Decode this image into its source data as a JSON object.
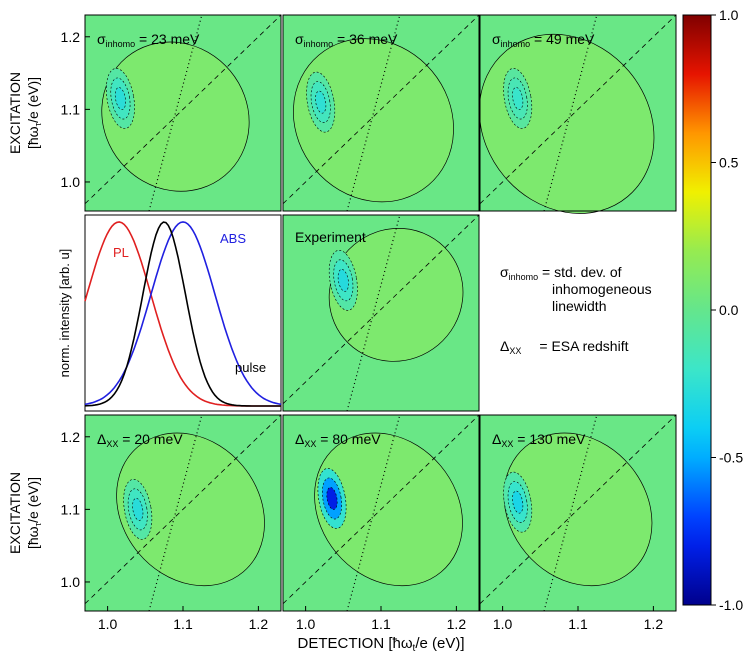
{
  "chart_data": {
    "type": "heatmap",
    "xlabel": "DETECTION [ħω",
    "xlabel_sub": "t",
    "xlabel_tail": "/e (eV)]",
    "ylabel_line1": "EXCITATION",
    "ylabel_line2": "[ħω",
    "ylabel_sub": "τ",
    "ylabel_tail": "/e (eV)]",
    "xlim": [
      0.97,
      1.23
    ],
    "ylim": [
      0.96,
      1.23
    ],
    "x_ticks": [
      1.0,
      1.1,
      1.2
    ],
    "y_ticks": [
      1.0,
      1.1,
      1.2
    ],
    "x_tick_labels": [
      "1.0",
      "1.1",
      "1.2"
    ],
    "y_tick_labels": [
      "1.0",
      "1.1",
      "1.2"
    ],
    "colorbar": {
      "range": [
        -1.0,
        1.0
      ],
      "ticks": [
        1.0,
        0.5,
        0.0,
        -0.5,
        -1.0
      ],
      "tick_labels": [
        "1.0",
        "0.5",
        "0.0",
        "-0.5",
        "-1.0"
      ]
    },
    "panels": [
      {
        "id": "sigma23",
        "sym": "σ",
        "sub": "inhomo",
        "label": " = 23 meV",
        "pos": {
          "cx": 1.09,
          "cy": 1.09,
          "sx": 0.042,
          "sy": 0.047,
          "neg": -0.32,
          "ncx": 1.017,
          "ncy": 1.115
        }
      },
      {
        "id": "sigma36",
        "sym": "σ",
        "sub": "inhomo",
        "label": " = 36 meV",
        "pos": {
          "cx": 1.09,
          "cy": 1.085,
          "sx": 0.045,
          "sy": 0.052,
          "neg": -0.3,
          "ncx": 1.02,
          "ncy": 1.11
        }
      },
      {
        "id": "sigma49",
        "sym": "σ",
        "sub": "inhomo",
        "label": " = 49 meV",
        "pos": {
          "cx": 1.085,
          "cy": 1.08,
          "sx": 0.048,
          "sy": 0.058,
          "neg": -0.25,
          "ncx": 1.02,
          "ncy": 1.115
        }
      },
      {
        "id": "dxx20",
        "sym": "Δ",
        "sub": "XX",
        "label": " = 20 meV",
        "pos": {
          "cx": 1.11,
          "cy": 1.1,
          "sx": 0.04,
          "sy": 0.05,
          "neg": -0.33,
          "ncx": 1.04,
          "ncy": 1.1
        }
      },
      {
        "id": "dxx80",
        "sym": "Δ",
        "sub": "XX",
        "label": " = 80 meV",
        "pos": {
          "cx": 1.11,
          "cy": 1.1,
          "sx": 0.04,
          "sy": 0.05,
          "neg": -0.95,
          "ncx": 1.035,
          "ncy": 1.115
        }
      },
      {
        "id": "dxx130",
        "sym": "Δ",
        "sub": "XX",
        "label": " = 130 meV",
        "pos": {
          "cx": 1.1,
          "cy": 1.1,
          "sx": 0.04,
          "sy": 0.05,
          "neg": -0.4,
          "ncx": 1.02,
          "ncy": 1.11
        }
      }
    ],
    "experiment": {
      "title": "Experiment",
      "pos": {
        "cx": 1.12,
        "cy": 1.12,
        "sx": 0.04,
        "sy": 0.04,
        "neg": -0.35,
        "ncx": 1.05,
        "ncy": 1.14
      }
    },
    "spectra": {
      "ylabel": "norm. intensity [arb. u]",
      "series": [
        {
          "name": "PL",
          "color": "#e02020",
          "peak": 1.015
        },
        {
          "name": "ABS",
          "color": "#2020e0",
          "peak": 1.1
        },
        {
          "name": "pulse",
          "color": "#000000",
          "peak": 1.075
        }
      ]
    },
    "legend_text": {
      "sigma_sym": "σ",
      "sigma_sub": "inhomo",
      "sigma_line1": " = std. dev. of",
      "sigma_line2": "inhomogeneous",
      "sigma_line3": "linewidth",
      "delta_sym": "Δ",
      "delta_sub": "XX",
      "delta_text": "= ESA redshift"
    }
  }
}
